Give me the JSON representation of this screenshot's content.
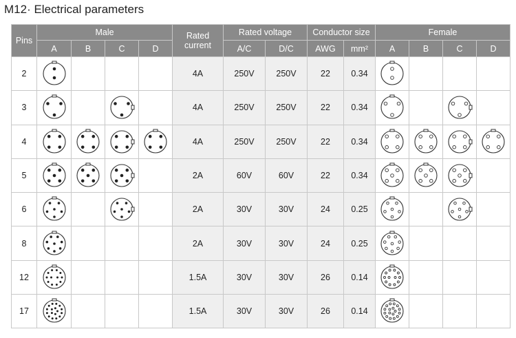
{
  "title": "M12· Electrical parameters",
  "headers": {
    "pins": "Pins",
    "male": "Male",
    "rated_current_1": "Rated",
    "rated_current_2": "current",
    "rated_voltage": "Rated voltage",
    "conductor_size": "Conductor size",
    "female": "Female",
    "male_codes": [
      "A",
      "B",
      "C",
      "D"
    ],
    "female_codes": [
      "A",
      "B",
      "C",
      "D"
    ],
    "ac": "A/C",
    "dc": "D/C",
    "awg": "AWG",
    "mm2": "mm²"
  },
  "rows": [
    {
      "pins": "2",
      "current": "4A",
      "ac": "250V",
      "dc": "250V",
      "awg": "22",
      "mm2": "0.34",
      "male": [
        "2-pin-male-a-icon",
        "",
        "",
        ""
      ],
      "female": [
        "2-pin-female-a-icon",
        "",
        "",
        ""
      ]
    },
    {
      "pins": "3",
      "current": "4A",
      "ac": "250V",
      "dc": "250V",
      "awg": "22",
      "mm2": "0.34",
      "male": [
        "3-pin-male-a-icon",
        "",
        "3-pin-male-c-icon",
        ""
      ],
      "female": [
        "3-pin-female-a-icon",
        "",
        "3-pin-female-c-icon",
        ""
      ]
    },
    {
      "pins": "4",
      "current": "4A",
      "ac": "250V",
      "dc": "250V",
      "awg": "22",
      "mm2": "0.34",
      "male": [
        "4-pin-male-a-icon",
        "4-pin-male-b-icon",
        "4-pin-male-c-icon",
        "4-pin-male-d-icon"
      ],
      "female": [
        "4-pin-female-a-icon",
        "4-pin-female-b-icon",
        "4-pin-female-c-icon",
        "4-pin-female-d-icon"
      ]
    },
    {
      "pins": "5",
      "current": "2A",
      "ac": "60V",
      "dc": "60V",
      "awg": "22",
      "mm2": "0.34",
      "male": [
        "5-pin-male-a-icon",
        "5-pin-male-b-icon",
        "5-pin-male-c-icon",
        ""
      ],
      "female": [
        "5-pin-female-a-icon",
        "5-pin-female-b-icon",
        "5-pin-female-c-icon",
        ""
      ]
    },
    {
      "pins": "6",
      "current": "2A",
      "ac": "30V",
      "dc": "30V",
      "awg": "24",
      "mm2": "0.25",
      "male": [
        "6-pin-male-a-icon",
        "",
        "6-pin-male-c-icon",
        ""
      ],
      "female": [
        "6-pin-female-a-icon",
        "",
        "6-pin-female-c-icon",
        ""
      ]
    },
    {
      "pins": "8",
      "current": "2A",
      "ac": "30V",
      "dc": "30V",
      "awg": "24",
      "mm2": "0.25",
      "male": [
        "8-pin-male-a-icon",
        "",
        "",
        ""
      ],
      "female": [
        "8-pin-female-a-icon",
        "",
        "",
        ""
      ]
    },
    {
      "pins": "12",
      "current": "1.5A",
      "ac": "30V",
      "dc": "30V",
      "awg": "26",
      "mm2": "0.14",
      "male": [
        "12-pin-male-a-icon",
        "",
        "",
        ""
      ],
      "female": [
        "12-pin-female-a-icon",
        "",
        "",
        ""
      ]
    },
    {
      "pins": "17",
      "current": "1.5A",
      "ac": "30V",
      "dc": "30V",
      "awg": "26",
      "mm2": "0.14",
      "male": [
        "17-pin-male-a-icon",
        "",
        "",
        ""
      ],
      "female": [
        "17-pin-female-a-icon",
        "",
        "",
        ""
      ]
    }
  ]
}
